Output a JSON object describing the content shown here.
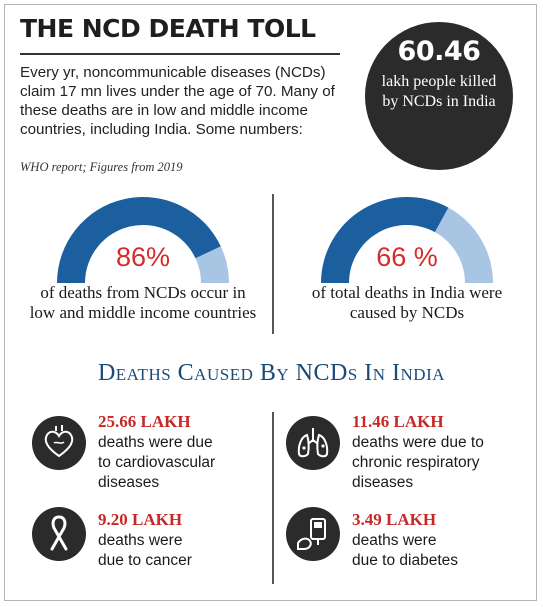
{
  "header": {
    "title": "THE NCD DEATH TOLL",
    "intro": "Every yr, noncommunicable diseases (NCDs) claim 17 mn lives under the age of 70. Many of these deaths are in low and middle income countries, including India. Some numbers:",
    "source": "WHO report; Figures from 2019"
  },
  "callout": {
    "value": "60.46",
    "text": "lakh people killed by NCDs in India"
  },
  "gauges": [
    {
      "percent": 86,
      "label": "86%",
      "caption": "of deaths from NCDs occur in low and middle income countries"
    },
    {
      "percent": 66,
      "label": "66 %",
      "caption": "of total deaths in India were caused by NCDs"
    }
  ],
  "colors": {
    "gauge_fill": "#1b5f9e",
    "gauge_rest": "#a9c5e4",
    "value_red": "#c62828",
    "section_blue": "#1a4a7a",
    "icon_bg": "#2b2b2b"
  },
  "section": {
    "title": "Deaths Caused By NCDs In India"
  },
  "stats": [
    {
      "value": "25.66 LAKH",
      "desc_lines": [
        "deaths were due",
        "to cardiovascular",
        "diseases"
      ],
      "icon": "heart-icon"
    },
    {
      "value": "11.46 LAKH",
      "desc_lines": [
        "deaths were due to",
        "chronic respiratory",
        "diseases"
      ],
      "icon": "lungs-icon"
    },
    {
      "value": "9.20 LAKH",
      "desc_lines": [
        "deaths were",
        "due to cancer"
      ],
      "icon": "ribbon-icon"
    },
    {
      "value": "3.49 LAKH",
      "desc_lines": [
        "deaths were",
        "due to diabetes"
      ],
      "icon": "glucose-meter-icon"
    }
  ]
}
